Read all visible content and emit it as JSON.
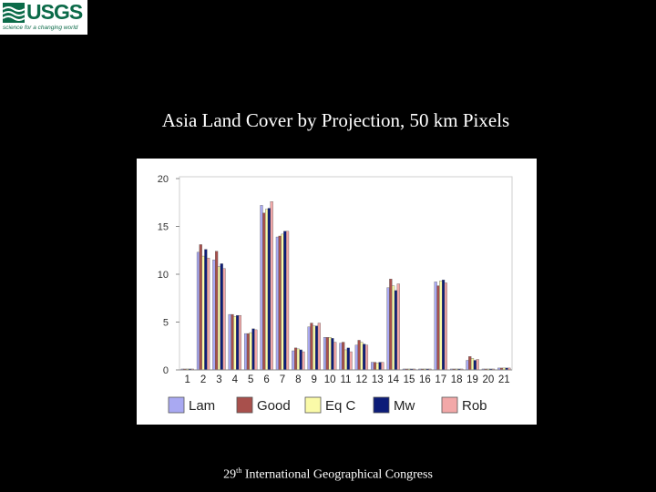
{
  "logo": {
    "wordmark": "USGS",
    "tagline": "science for a changing world"
  },
  "slide": {
    "title": "Asia Land Cover by Projection, 50 km Pixels",
    "footer_number": "29",
    "footer_suffix": "th",
    "footer_text": " International Geographical Congress"
  },
  "chart_data": {
    "type": "bar",
    "title": "",
    "xlabel": "",
    "ylabel": "",
    "ylim": [
      0,
      20
    ],
    "yticks": [
      "0",
      "5",
      "10",
      "15",
      "20"
    ],
    "grid": false,
    "legend_position": "bottom",
    "categories": [
      "1",
      "2",
      "3",
      "4",
      "5",
      "6",
      "7",
      "8",
      "9",
      "10",
      "11",
      "12",
      "13",
      "14",
      "15",
      "16",
      "17",
      "18",
      "19",
      "20",
      "21"
    ],
    "series": [
      {
        "name": "Lam",
        "color": "#a9a9f2",
        "values": [
          0.1,
          12.3,
          11.5,
          5.8,
          3.8,
          17.2,
          13.9,
          2.0,
          4.5,
          3.4,
          2.8,
          2.6,
          0.8,
          8.6,
          0.1,
          0.1,
          9.2,
          0.1,
          1.0,
          0.1,
          0.2
        ]
      },
      {
        "name": "Good",
        "color": "#a8504c",
        "values": [
          0.1,
          13.1,
          12.4,
          5.8,
          3.8,
          16.4,
          14.0,
          2.3,
          4.9,
          3.4,
          2.9,
          3.1,
          0.8,
          9.5,
          0.1,
          0.1,
          8.8,
          0.1,
          1.4,
          0.1,
          0.2
        ]
      },
      {
        "name": "Eq C",
        "color": "#fafaa8",
        "values": [
          0.1,
          11.9,
          10.8,
          5.6,
          3.9,
          16.8,
          14.2,
          2.2,
          4.6,
          3.4,
          2.1,
          2.9,
          0.7,
          8.8,
          0.1,
          0.1,
          9.3,
          0.1,
          1.2,
          0.1,
          0.2
        ]
      },
      {
        "name": "Mw",
        "color": "#0c1c78",
        "values": [
          0.1,
          12.6,
          11.1,
          5.7,
          4.3,
          16.9,
          14.5,
          2.1,
          4.6,
          3.3,
          2.3,
          2.7,
          0.8,
          8.3,
          0.1,
          0.1,
          9.4,
          0.1,
          1.0,
          0.1,
          0.2
        ]
      },
      {
        "name": "Rob",
        "color": "#f2a8a8",
        "values": [
          0.1,
          11.7,
          10.6,
          5.7,
          4.2,
          17.6,
          14.5,
          1.9,
          4.9,
          2.9,
          1.9,
          2.6,
          0.8,
          9.0,
          0.1,
          0.1,
          9.1,
          0.1,
          1.1,
          0.1,
          0.2
        ]
      }
    ]
  }
}
